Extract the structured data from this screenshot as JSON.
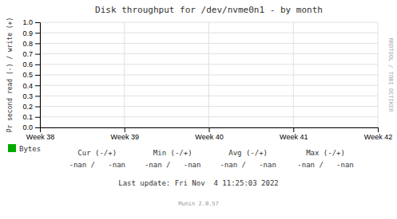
{
  "chart_data": {
    "type": "line",
    "title": "Disk throughput for /dev/nvme0n1 - by month",
    "y_label": "Pr second read (-) / write (+)",
    "categories": [
      "Week 38",
      "Week 39",
      "Week 40",
      "Week 41",
      "Week 42"
    ],
    "series": [
      {
        "name": "Bytes",
        "color": "#00aa00",
        "values": [
          null,
          null,
          null,
          null,
          null
        ]
      }
    ],
    "ylim": [
      0.0,
      1.0
    ],
    "yticks": [
      {
        "value": 0.0,
        "label": "0.0"
      },
      0.1,
      0.2,
      0.3,
      0.4,
      0.5,
      0.6,
      0.7,
      0.8,
      0.9,
      {
        "value": 1.0,
        "label": "1.0"
      }
    ],
    "grid": true,
    "annotations": [
      "Cur (-/+)",
      "Min (-/+)",
      "Avg (-/+)",
      "Max (-/+)",
      "-nan /   -nan",
      "-nan /   -nan",
      "-nan /   -nan",
      "-nan /   -nan",
      "Last update: Fri Nov  4 11:25:03 2022",
      "Munin 2.0.57",
      "RRDTOOL / TOBI OETIKER"
    ]
  }
}
